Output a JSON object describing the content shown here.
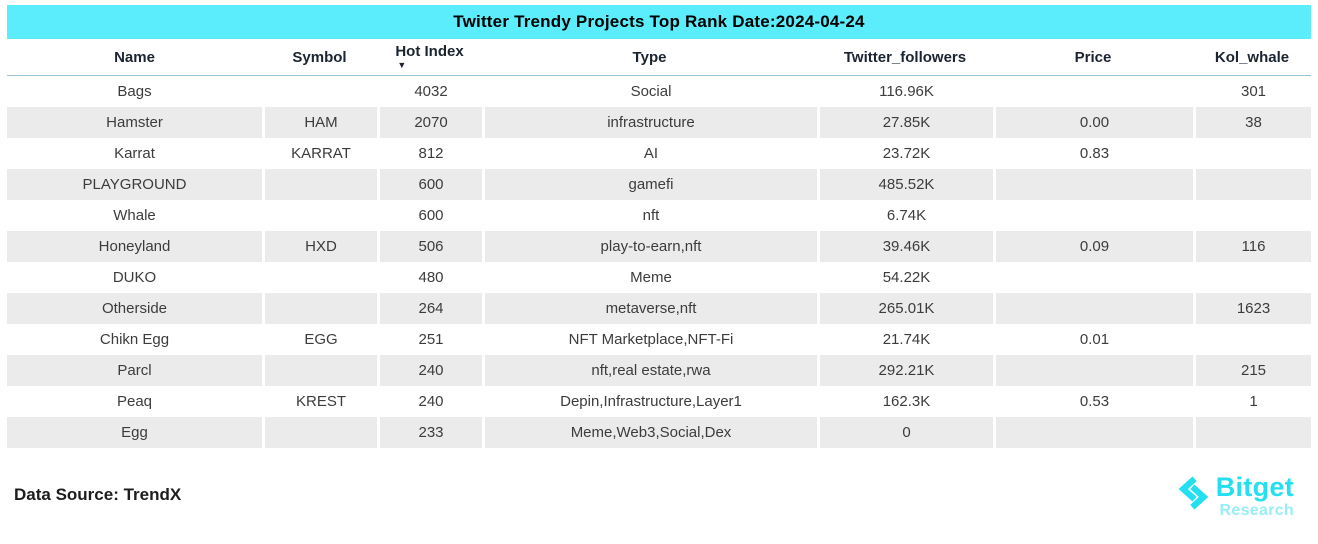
{
  "title": "Twitter Trendy Projects Top Rank Date:2024-04-24",
  "chart_data": {
    "type": "table",
    "title": "Twitter Trendy Projects Top Rank Date:2024-04-24",
    "columns": [
      "Name",
      "Symbol",
      "Hot Index",
      "Type",
      "Twitter_followers",
      "Price",
      "Kol_whale"
    ],
    "sorted_by": "Hot Index",
    "sort_direction": "descending",
    "rows": [
      [
        "Bags",
        "",
        "4032",
        "Social",
        "116.96K",
        "",
        "301"
      ],
      [
        "Hamster",
        "HAM",
        "2070",
        "infrastructure",
        "27.85K",
        "0.00",
        "38"
      ],
      [
        "Karrat",
        "KARRAT",
        "812",
        "AI",
        "23.72K",
        "0.83",
        ""
      ],
      [
        "PLAYGROUND",
        "",
        "600",
        "gamefi",
        "485.52K",
        "",
        ""
      ],
      [
        "Whale",
        "",
        "600",
        "nft",
        "6.74K",
        "",
        ""
      ],
      [
        "Honeyland",
        "HXD",
        "506",
        "play-to-earn,nft",
        "39.46K",
        "0.09",
        "116"
      ],
      [
        "DUKO",
        "",
        "480",
        "Meme",
        "54.22K",
        "",
        ""
      ],
      [
        "Otherside",
        "",
        "264",
        "metaverse,nft",
        "265.01K",
        "",
        "1623"
      ],
      [
        "Chikn Egg",
        "EGG",
        "251",
        "NFT Marketplace,NFT-Fi",
        "21.74K",
        "0.01",
        ""
      ],
      [
        "Parcl",
        "",
        "240",
        "nft,real estate,rwa",
        "292.21K",
        "",
        "215"
      ],
      [
        "Peaq",
        "KREST",
        "240",
        "Depin,Infrastructure,Layer1",
        "162.3K",
        "0.53",
        "1"
      ],
      [
        "Egg",
        "",
        "233",
        "Meme,Web3,Social,Dex",
        "0",
        "",
        ""
      ]
    ]
  },
  "icons": {
    "sort_descending": "▼"
  },
  "footer": {
    "data_source": "Data Source: TrendX",
    "logo_brand": "Bitget",
    "logo_sub": "Research"
  },
  "colors": {
    "title_bg": "#5BEDFB",
    "stripe": "#EBEBEB",
    "header_line": "#9CC3D5",
    "header_text": "#1B2431",
    "body_text": "#3C3C3C",
    "footer_text": "#1D1D1D",
    "logo_primary": "#24DEF2",
    "logo_secondary": "#97EEF9"
  }
}
